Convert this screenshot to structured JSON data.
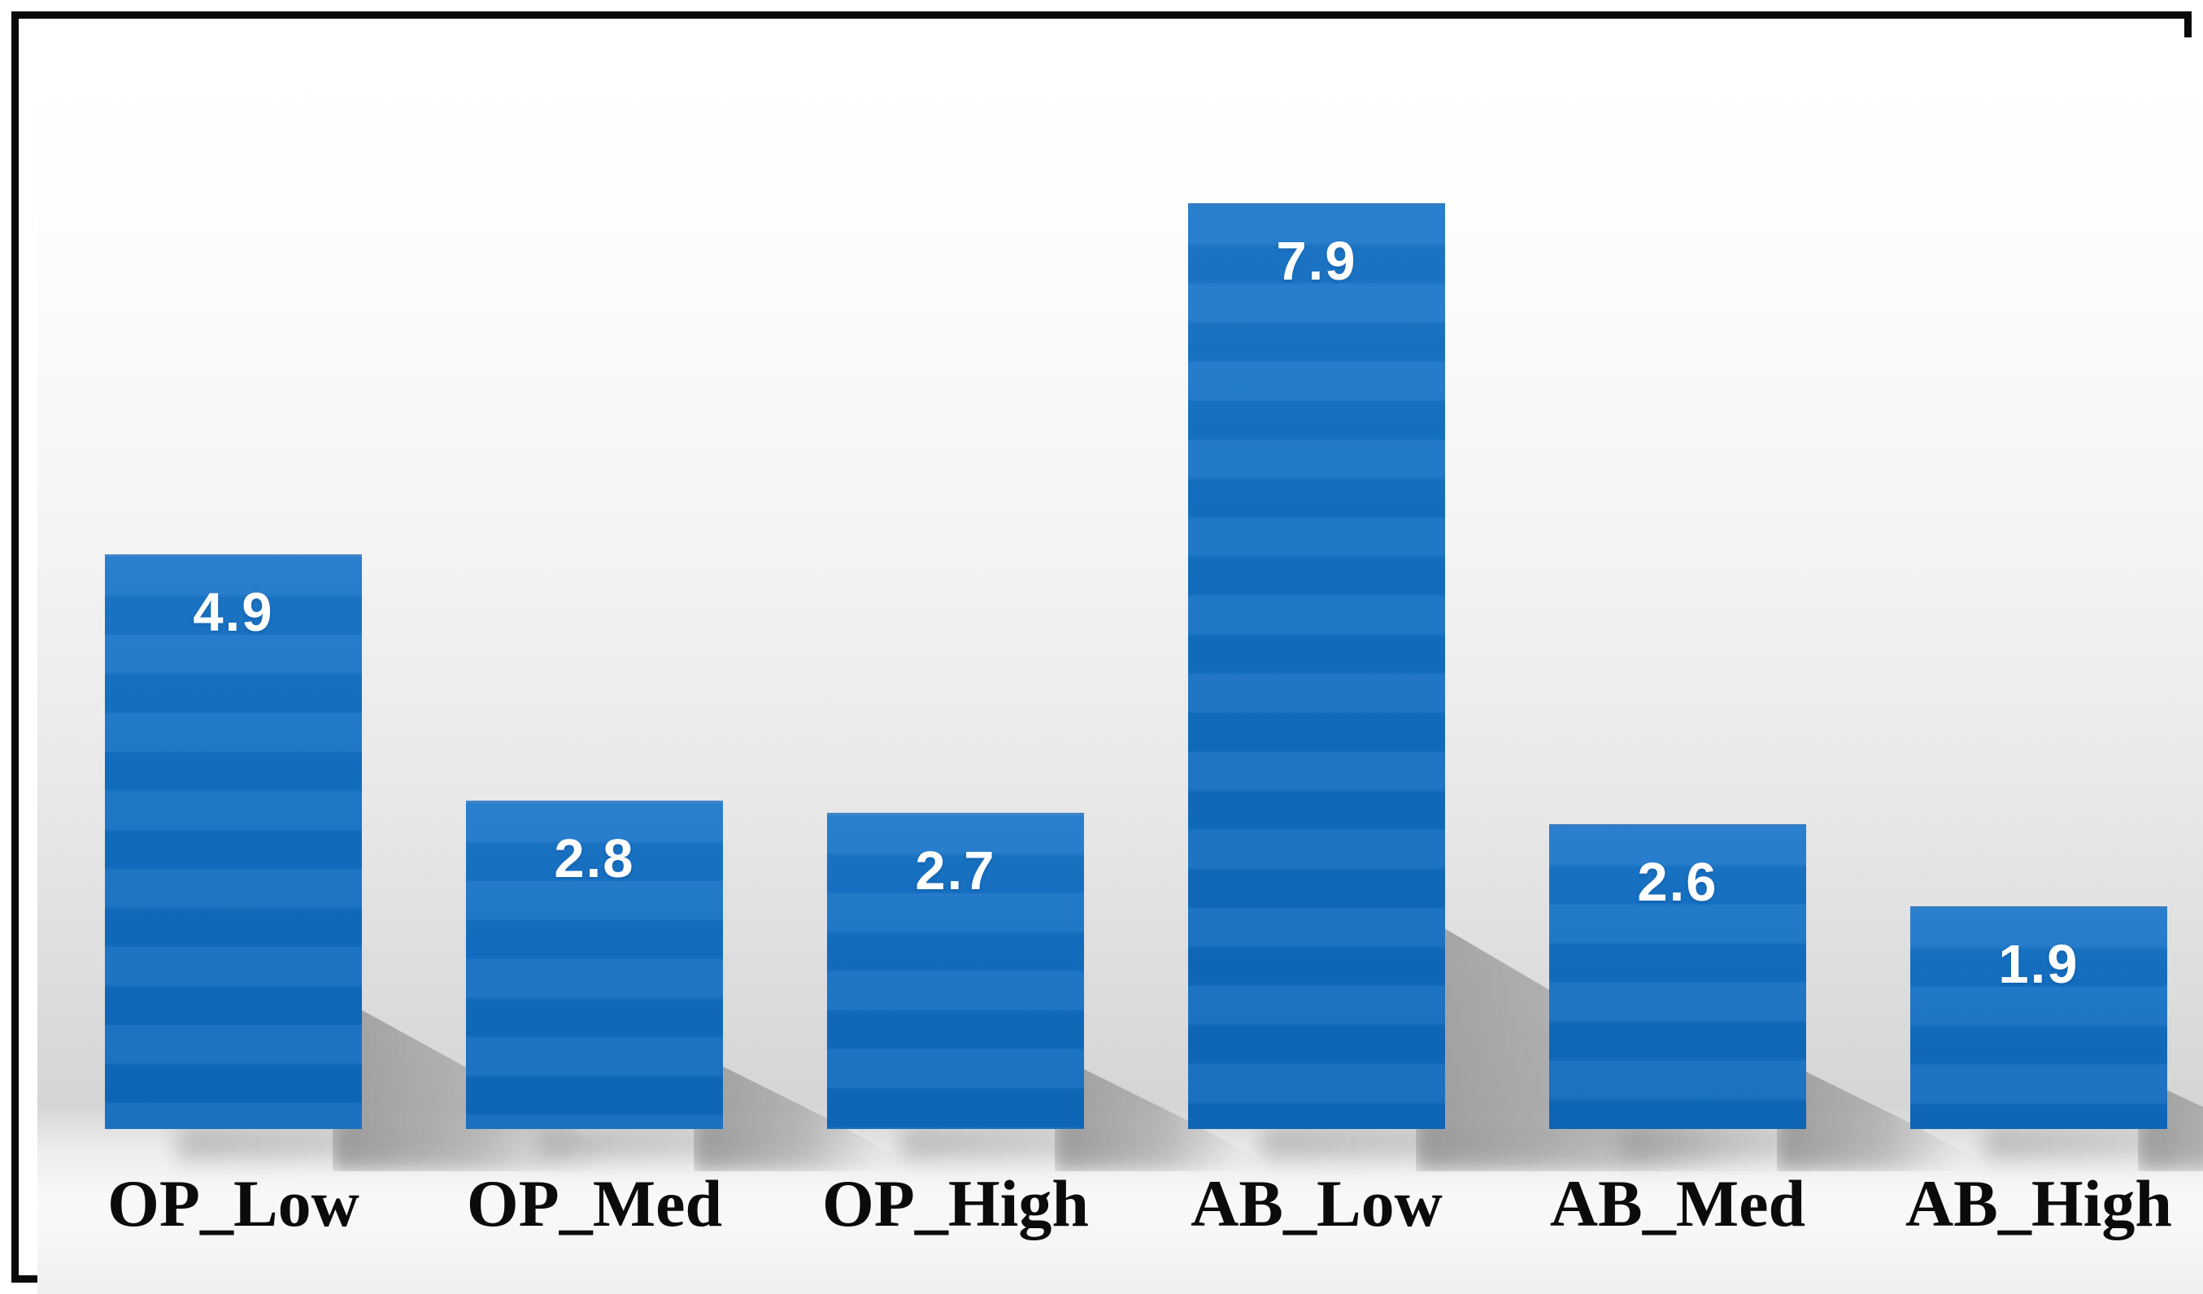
{
  "figure": {
    "frame_border_color": "#0a0a0a",
    "bar_color": "#1470c4",
    "bar_gradient_top": "#1e78cb",
    "bar_gradient_bottom": "#0f68bc",
    "value_label_color": "#ffffff",
    "category_label_color": "#0b0b0b",
    "background_top": "#ffffff",
    "background_wall": "#d5d5d5",
    "background_floor": "#f9f9f9",
    "shadow_color": "#9e9e9e"
  },
  "chart_data": {
    "type": "bar",
    "title": "",
    "xlabel": "",
    "ylabel": "",
    "categories": [
      "OP_Low",
      "OP_Med",
      "OP_High",
      "AB_Low",
      "AB_Med",
      "AB_High"
    ],
    "values": [
      4.9,
      2.8,
      2.7,
      7.9,
      2.6,
      1.9
    ],
    "display_labels": [
      "4.9",
      "2.8",
      "2.7",
      "7.9",
      "2.6",
      "1.9"
    ],
    "ylim": [
      0,
      9.3
    ],
    "grid": false,
    "legend": false,
    "data_label_position": "inside-top",
    "bar_shadow": "perspective-below-right"
  }
}
